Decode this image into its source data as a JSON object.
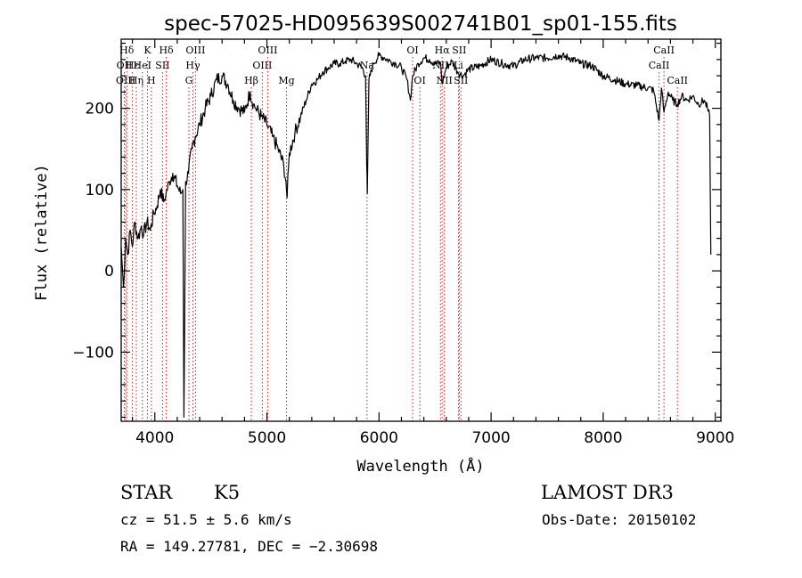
{
  "chart_data": {
    "type": "line",
    "title": "spec-57025-HD095639S002741B01_sp01-155.fits",
    "xlabel": "Wavelength (Å)",
    "ylabel": "Flux (relative)",
    "xlim": [
      3700,
      9050
    ],
    "ylim": [
      -185,
      285
    ],
    "xticks": [
      4000,
      5000,
      6000,
      7000,
      8000,
      9000
    ],
    "xtick_labels": [
      "4000",
      "5000",
      "6000",
      "7000",
      "8000",
      "9000"
    ],
    "yticks": [
      -100,
      0,
      100,
      200
    ],
    "ytick_labels": [
      "−100",
      "0",
      "100",
      "200"
    ],
    "series": [
      {
        "name": "flux",
        "x": [
          3700,
          3720,
          3740,
          3760,
          3780,
          3800,
          3820,
          3850,
          3880,
          3900,
          3930,
          3960,
          3990,
          4020,
          4050,
          4080,
          4100,
          4130,
          4160,
          4200,
          4230,
          4250,
          4260,
          4275,
          4300,
          4330,
          4360,
          4400,
          4450,
          4500,
          4550,
          4600,
          4650,
          4700,
          4750,
          4800,
          4850,
          4880,
          4900,
          4950,
          5000,
          5050,
          5100,
          5150,
          5170,
          5180,
          5200,
          5250,
          5300,
          5350,
          5400,
          5450,
          5500,
          5550,
          5600,
          5650,
          5700,
          5750,
          5800,
          5850,
          5880,
          5890,
          5896,
          5910,
          5950,
          6000,
          6050,
          6100,
          6150,
          6200,
          6250,
          6280,
          6300,
          6350,
          6400,
          6450,
          6500,
          6550,
          6563,
          6600,
          6650,
          6700,
          6750,
          6800,
          6900,
          7000,
          7100,
          7200,
          7300,
          7400,
          7500,
          7600,
          7700,
          7800,
          7900,
          8000,
          8100,
          8200,
          8300,
          8400,
          8450,
          8498,
          8520,
          8542,
          8580,
          8620,
          8662,
          8700,
          8750,
          8800,
          8850,
          8900,
          8930,
          8950,
          8960
        ],
        "y": [
          30,
          -20,
          40,
          20,
          50,
          30,
          60,
          40,
          55,
          45,
          60,
          50,
          70,
          80,
          100,
          85,
          95,
          110,
          120,
          105,
          95,
          100,
          -180,
          110,
          120,
          150,
          165,
          180,
          200,
          215,
          235,
          240,
          230,
          210,
          200,
          195,
          220,
          205,
          200,
          190,
          180,
          165,
          150,
          130,
          110,
          90,
          145,
          170,
          190,
          210,
          230,
          235,
          245,
          250,
          255,
          255,
          258,
          260,
          255,
          250,
          240,
          130,
          95,
          235,
          255,
          265,
          262,
          258,
          255,
          250,
          235,
          210,
          240,
          255,
          262,
          260,
          255,
          255,
          230,
          250,
          258,
          245,
          240,
          248,
          252,
          260,
          255,
          252,
          260,
          262,
          262,
          265,
          262,
          255,
          252,
          240,
          235,
          230,
          228,
          225,
          222,
          185,
          225,
          195,
          220,
          210,
          205,
          215,
          210,
          215,
          205,
          210,
          200,
          190,
          20
        ]
      }
    ],
    "spectral_lines": [
      {
        "label": "Hδ",
        "x": 3750,
        "row": 0
      },
      {
        "label": "OII",
        "x": 3728,
        "row": 1
      },
      {
        "label": "OIII",
        "x": 3740,
        "row": 2
      },
      {
        "label": "Hε",
        "x": 3800,
        "row": 1
      },
      {
        "label": "Hη",
        "x": 3835,
        "row": 2
      },
      {
        "label": "K",
        "x": 3934,
        "row": 0
      },
      {
        "label": "HeI",
        "x": 3889,
        "row": 1
      },
      {
        "label": "SII",
        "x": 4069,
        "row": 1
      },
      {
        "label": "H",
        "x": 3969,
        "row": 2
      },
      {
        "label": "Hδ",
        "x": 4102,
        "row": 0
      },
      {
        "label": "OIII",
        "x": 4363,
        "row": 0
      },
      {
        "label": "Hγ",
        "x": 4340,
        "row": 1
      },
      {
        "label": "G",
        "x": 4304,
        "row": 2
      },
      {
        "label": "OIII",
        "x": 5007,
        "row": 0
      },
      {
        "label": "OIII",
        "x": 4959,
        "row": 1
      },
      {
        "label": "Hβ",
        "x": 4861,
        "row": 2
      },
      {
        "label": "Mg",
        "x": 5175,
        "row": 2
      },
      {
        "label": "Na",
        "x": 5893,
        "row": 1
      },
      {
        "label": "OI",
        "x": 6300,
        "row": 0
      },
      {
        "label": "OI",
        "x": 6364,
        "row": 2
      },
      {
        "label": "Hα",
        "x": 6563,
        "row": 0
      },
      {
        "label": "NII",
        "x": 6548,
        "row": 1
      },
      {
        "label": "NII",
        "x": 6583,
        "row": 2
      },
      {
        "label": "SII",
        "x": 6716,
        "row": 0
      },
      {
        "label": "Li",
        "x": 6708,
        "row": 1
      },
      {
        "label": "SII",
        "x": 6731,
        "row": 2
      },
      {
        "label": "CaII",
        "x": 8542,
        "row": 0
      },
      {
        "label": "CaII",
        "x": 8498,
        "row": 1
      },
      {
        "label": "CaII",
        "x": 8662,
        "row": 2
      }
    ]
  },
  "info": {
    "object_class": "STAR",
    "subclass": "K5",
    "survey": "LAMOST DR3",
    "redshift": "cz = 51.5 ± 5.6 km/s",
    "obs_date": "Obs-Date: 20150102",
    "coords": "RA = 149.27781, DEC =  −2.30698"
  },
  "colors": {
    "spectrum": "#000000",
    "line_markers": "#cc2222",
    "background": "#ffffff"
  }
}
